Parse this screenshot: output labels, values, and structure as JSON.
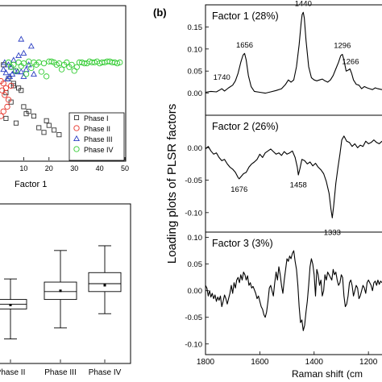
{
  "panel_label": "(b)",
  "chart_data": [
    {
      "type": "scatter",
      "xlabel": "Factor 1",
      "xlim": [
        0,
        50
      ],
      "ylim": [
        -1.5,
        1.8
      ],
      "x_ticks": [
        "10",
        "20",
        "30",
        "40",
        "50"
      ],
      "legend_position": "bottom-right",
      "series": [
        {
          "name": "Phase I",
          "marker": "square",
          "color": "#333333",
          "x": [
            2,
            4,
            6,
            3,
            8,
            5,
            10,
            12,
            3,
            7,
            14,
            19,
            20,
            22,
            24,
            18,
            16,
            11,
            9,
            6
          ],
          "y": [
            0.55,
            0.25,
            0.15,
            -0.05,
            0.05,
            -0.25,
            -0.35,
            -0.45,
            -0.6,
            -0.7,
            -0.55,
            -0.65,
            -0.75,
            -0.85,
            -0.95,
            -0.9,
            -0.8,
            -0.5,
            0.0,
            0.1
          ]
        },
        {
          "name": "Phase II",
          "marker": "circle",
          "color": "#e8332a",
          "x": [
            1,
            2,
            3,
            1.5,
            2.5,
            4,
            3.5,
            2,
            1,
            5
          ],
          "y": [
            0.2,
            0.15,
            0.05,
            0.0,
            -0.1,
            -0.2,
            -0.35,
            -0.45,
            -0.55,
            0.1
          ]
        },
        {
          "name": "Phase III",
          "marker": "triangle",
          "color": "#2a3ec2",
          "x": [
            2,
            3,
            4,
            5,
            6,
            4.5,
            3.5,
            5.5,
            6.5,
            2.5,
            7.5,
            8,
            9,
            10,
            11,
            12,
            13,
            14,
            9,
            10
          ],
          "y": [
            0.45,
            0.38,
            0.55,
            0.5,
            0.65,
            0.3,
            0.25,
            0.35,
            0.42,
            0.6,
            0.4,
            0.75,
            1.1,
            0.8,
            0.45,
            0.55,
            0.95,
            0.35,
            0.4,
            0.3
          ]
        },
        {
          "name": "Phase IV",
          "marker": "circle",
          "color": "#33cc33",
          "x": [
            4,
            6,
            8,
            10,
            12,
            14,
            16,
            18,
            20,
            22,
            24,
            26,
            28,
            30,
            32,
            34,
            36,
            38,
            40,
            42,
            44,
            46,
            48,
            5,
            7,
            9,
            11,
            13,
            15,
            17,
            19,
            21,
            23,
            25,
            27,
            29,
            31,
            33,
            35,
            37,
            39,
            41,
            43,
            45,
            47
          ],
          "y": [
            0.6,
            0.55,
            0.6,
            0.58,
            0.62,
            0.6,
            0.6,
            0.58,
            0.62,
            0.6,
            0.58,
            0.55,
            0.5,
            0.42,
            0.6,
            0.58,
            0.62,
            0.6,
            0.58,
            0.6,
            0.62,
            0.6,
            0.6,
            0.5,
            0.42,
            0.52,
            0.35,
            0.48,
            0.55,
            0.4,
            0.3,
            0.62,
            0.55,
            0.45,
            0.6,
            0.55,
            0.5,
            0.6,
            0.58,
            0.6,
            0.62,
            0.6,
            0.62,
            0.6,
            0.58
          ]
        }
      ]
    },
    {
      "type": "box",
      "ylim": [
        0,
        1
      ],
      "categories": [
        "Phase II",
        "Phase III",
        "Phase IV"
      ],
      "boxes": [
        {
          "whisker_low": 0.15,
          "q1": 0.34,
          "median": 0.37,
          "q3": 0.4,
          "whisker_high": 0.53,
          "mean": 0.365
        },
        {
          "whisker_low": 0.22,
          "q1": 0.4,
          "median": 0.45,
          "q3": 0.51,
          "whisker_high": 0.71,
          "mean": 0.455
        },
        {
          "whisker_low": 0.31,
          "q1": 0.45,
          "median": 0.5,
          "q3": 0.57,
          "whisker_high": 0.74,
          "mean": 0.49
        }
      ]
    },
    {
      "type": "line",
      "ylabel": "Loading plots of PLSR factors",
      "xlabel": "Raman shift",
      "xlabel_unit_visible": "(cm",
      "xlim": [
        1800,
        1150
      ],
      "x_ticks": [
        1800,
        1600,
        1400,
        1200
      ],
      "subplots": [
        {
          "title": "Factor 1 (28%)",
          "ylim": [
            -0.05,
            0.2
          ],
          "y_ticks": [
            "0.15",
            "0.10",
            "0.05",
            "0.00"
          ],
          "y_tick_values": [
            0.15,
            0.1,
            0.05,
            0.0
          ],
          "annotations": [
            {
              "label": "1440",
              "x": 1440,
              "y": 0.188
            },
            {
              "label": "1656",
              "x": 1656,
              "y": 0.094
            },
            {
              "label": "1296",
              "x": 1296,
              "y": 0.093
            },
            {
              "label": "1266",
              "x": 1266,
              "y": 0.057
            },
            {
              "label": "1740",
              "x": 1740,
              "y": 0.021
            }
          ],
          "x": [
            1800,
            1780,
            1760,
            1745,
            1740,
            1730,
            1715,
            1700,
            1690,
            1680,
            1670,
            1662,
            1656,
            1650,
            1642,
            1632,
            1620,
            1600,
            1580,
            1560,
            1540,
            1520,
            1505,
            1495,
            1485,
            1475,
            1465,
            1455,
            1448,
            1444,
            1440,
            1436,
            1430,
            1420,
            1410,
            1400,
            1390,
            1380,
            1370,
            1360,
            1350,
            1340,
            1330,
            1320,
            1310,
            1302,
            1296,
            1290,
            1282,
            1275,
            1268,
            1262,
            1255,
            1245,
            1235,
            1225,
            1215,
            1205,
            1195,
            1185,
            1175,
            1165,
            1150
          ],
          "y": [
            0.002,
            0.004,
            0.003,
            0.008,
            0.01,
            0.005,
            0.012,
            0.018,
            0.028,
            0.045,
            0.07,
            0.086,
            0.09,
            0.075,
            0.04,
            0.015,
            0.004,
            0.002,
            0.0,
            0.003,
            0.006,
            0.01,
            0.02,
            0.03,
            0.025,
            0.03,
            0.06,
            0.11,
            0.158,
            0.178,
            0.183,
            0.17,
            0.12,
            0.06,
            0.035,
            0.03,
            0.028,
            0.03,
            0.032,
            0.028,
            0.025,
            0.03,
            0.04,
            0.055,
            0.07,
            0.085,
            0.088,
            0.075,
            0.05,
            0.052,
            0.055,
            0.045,
            0.03,
            0.02,
            0.018,
            0.01,
            0.015,
            0.012,
            0.01,
            0.008,
            0.012,
            0.01,
            0.008
          ]
        },
        {
          "title": "Factor 2 (26%)",
          "ylim": [
            -0.13,
            0.05
          ],
          "y_ticks": [
            "0.00",
            "-0.05",
            "-0.10"
          ],
          "y_tick_values": [
            0.0,
            -0.05,
            -0.1
          ],
          "annotations": [
            {
              "label": "1676",
              "x": 1676,
              "y": -0.052
            },
            {
              "label": "1458",
              "x": 1458,
              "y": -0.045
            },
            {
              "label": "1333",
              "x": 1333,
              "y": -0.118
            }
          ],
          "x": [
            1800,
            1790,
            1780,
            1770,
            1760,
            1750,
            1740,
            1730,
            1720,
            1710,
            1700,
            1690,
            1680,
            1676,
            1670,
            1660,
            1650,
            1640,
            1630,
            1620,
            1610,
            1600,
            1590,
            1580,
            1570,
            1560,
            1550,
            1540,
            1530,
            1520,
            1510,
            1500,
            1490,
            1480,
            1470,
            1462,
            1458,
            1452,
            1445,
            1435,
            1425,
            1415,
            1405,
            1395,
            1385,
            1375,
            1365,
            1355,
            1345,
            1338,
            1333,
            1328,
            1320,
            1312,
            1305,
            1298,
            1290,
            1280,
            1270,
            1260,
            1250,
            1240,
            1230,
            1220,
            1210,
            1200,
            1190,
            1180,
            1170,
            1160,
            1150
          ],
          "y": [
            -0.002,
            0.002,
            -0.005,
            -0.01,
            -0.008,
            -0.015,
            -0.02,
            -0.018,
            -0.025,
            -0.03,
            -0.033,
            -0.038,
            -0.046,
            -0.048,
            -0.045,
            -0.04,
            -0.038,
            -0.03,
            -0.025,
            -0.022,
            -0.018,
            -0.01,
            -0.015,
            -0.008,
            -0.005,
            -0.002,
            -0.006,
            -0.01,
            -0.008,
            -0.012,
            -0.006,
            -0.01,
            -0.008,
            -0.005,
            -0.015,
            -0.03,
            -0.042,
            -0.032,
            -0.018,
            -0.02,
            -0.025,
            -0.022,
            -0.028,
            -0.024,
            -0.03,
            -0.034,
            -0.04,
            -0.052,
            -0.07,
            -0.095,
            -0.108,
            -0.09,
            -0.055,
            -0.03,
            -0.01,
            0.012,
            0.018,
            0.01,
            0.008,
            0.002,
            0.006,
            0.0,
            0.004,
            0.002,
            0.01,
            0.006,
            0.008,
            0.012,
            0.008,
            0.006,
            0.01
          ]
        },
        {
          "title": "Factor 3 (3%)",
          "ylim": [
            -0.12,
            0.11
          ],
          "y_ticks": [
            "0.10",
            "0.05",
            "0.00",
            "-0.05",
            "-0.10"
          ],
          "y_tick_values": [
            0.1,
            0.05,
            0.0,
            -0.05,
            -0.1
          ],
          "x": [
            1800,
            1795,
            1790,
            1785,
            1780,
            1775,
            1770,
            1765,
            1760,
            1755,
            1750,
            1745,
            1740,
            1735,
            1730,
            1725,
            1720,
            1715,
            1710,
            1705,
            1700,
            1695,
            1690,
            1685,
            1680,
            1675,
            1670,
            1665,
            1660,
            1655,
            1650,
            1645,
            1640,
            1635,
            1630,
            1625,
            1620,
            1615,
            1610,
            1605,
            1600,
            1595,
            1590,
            1585,
            1580,
            1575,
            1570,
            1565,
            1560,
            1555,
            1550,
            1545,
            1540,
            1535,
            1530,
            1525,
            1520,
            1515,
            1510,
            1505,
            1500,
            1495,
            1490,
            1485,
            1480,
            1475,
            1470,
            1465,
            1460,
            1455,
            1450,
            1445,
            1440,
            1435,
            1430,
            1425,
            1420,
            1415,
            1410,
            1405,
            1400,
            1395,
            1390,
            1385,
            1380,
            1375,
            1370,
            1365,
            1360,
            1355,
            1350,
            1345,
            1340,
            1335,
            1330,
            1325,
            1320,
            1315,
            1310,
            1305,
            1300,
            1295,
            1290,
            1285,
            1280,
            1275,
            1270,
            1265,
            1260,
            1255,
            1250,
            1245,
            1240,
            1235,
            1230,
            1225,
            1220,
            1215,
            1210,
            1205,
            1200,
            1195,
            1190,
            1185,
            1180,
            1175,
            1170,
            1165,
            1160,
            1155,
            1150
          ],
          "y": [
            0.01,
            0.005,
            -0.01,
            0.0,
            -0.012,
            -0.005,
            -0.015,
            -0.008,
            -0.02,
            -0.012,
            -0.018,
            -0.01,
            -0.03,
            -0.02,
            -0.008,
            -0.015,
            -0.025,
            -0.015,
            -0.005,
            0.01,
            -0.005,
            0.015,
            0.005,
            0.02,
            0.025,
            0.015,
            0.03,
            0.02,
            0.035,
            0.03,
            0.02,
            0.028,
            0.01,
            0.015,
            0.005,
            0.008,
            0.002,
            -0.005,
            -0.015,
            -0.01,
            -0.02,
            -0.03,
            -0.035,
            -0.045,
            -0.05,
            -0.04,
            -0.02,
            0.005,
            0.01,
            0.0,
            -0.01,
            0.015,
            0.035,
            0.02,
            0.045,
            0.03,
            0.01,
            -0.005,
            0.02,
            0.04,
            0.06,
            0.055,
            0.065,
            0.06,
            0.07,
            0.075,
            0.055,
            0.04,
            0.01,
            -0.03,
            -0.06,
            -0.055,
            -0.075,
            -0.065,
            -0.04,
            -0.02,
            0.01,
            0.045,
            0.06,
            0.05,
            0.03,
            -0.01,
            0.04,
            0.03,
            0.01,
            0.02,
            -0.01,
            0.0,
            0.03,
            0.02,
            0.035,
            0.03,
            0.025,
            0.02,
            0.04,
            0.03,
            0.035,
            0.02,
            0.01,
            0.015,
            0.03,
            0.025,
            -0.01,
            -0.03,
            -0.025,
            -0.01,
            0.015,
            0.02,
            0.01,
            -0.01,
            0.0,
            0.01,
            0.005,
            -0.015,
            -0.01,
            0.0,
            0.01,
            0.005,
            -0.005,
            0.015,
            0.02,
            0.015,
            0.01,
            0.0,
            0.015,
            0.018,
            0.01,
            0.02,
            0.012,
            0.018,
            0.015
          ]
        }
      ]
    }
  ]
}
